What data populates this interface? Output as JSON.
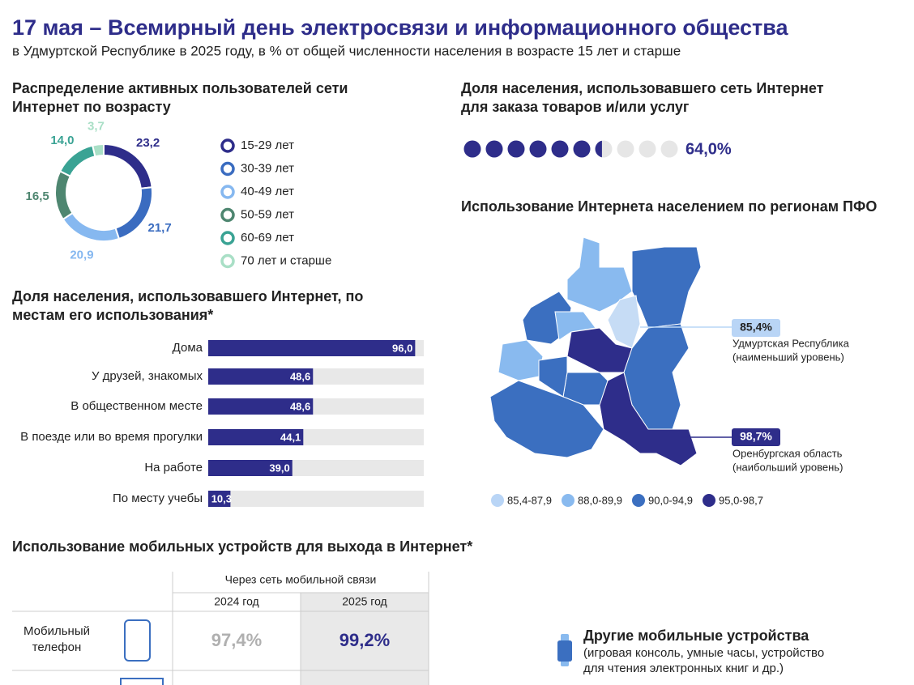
{
  "header": {
    "title": "17 мая – Всемирный день электросвязи и информационного общества",
    "subtitle": "в Удмуртской Республике в 2025 году, в % от общей численности населения в возрасте 15 лет и старше"
  },
  "chart_data": [
    {
      "type": "donut",
      "title": "Распределение активных пользователей сети Интернет по возрасту",
      "categories": [
        "15-29 лет",
        "30-39 лет",
        "40-49 лет",
        "50-59 лет",
        "60-69 лет",
        "70 лет и старше"
      ],
      "values": [
        23.2,
        21.7,
        20.9,
        16.5,
        14.0,
        3.7
      ],
      "value_labels": [
        "23,2",
        "21,7",
        "20,9",
        "16,5",
        "14,0",
        "3,7"
      ],
      "colors": [
        "#2e2d8a",
        "#3a6cc0",
        "#86b8f0",
        "#4e8670",
        "#3aa394",
        "#a9dfc6"
      ]
    },
    {
      "type": "dots",
      "title": "Доля населения, использовавшего сеть Интернет для заказа товаров и/или услуг",
      "values": [
        64.0
      ],
      "value_labels": [
        "64,0%"
      ],
      "xlim": [
        0,
        100
      ],
      "color": "#2e2d8a"
    },
    {
      "type": "hbar",
      "title": "Доля населения, использовавшего Интернет, по местам его использования*",
      "categories": [
        "Дома",
        "У друзей, знакомых",
        "В общественном месте",
        "В поезде или во время прогулки",
        "На работе",
        "По месту учебы"
      ],
      "values": [
        96.0,
        48.6,
        48.6,
        44.1,
        39.0,
        10.3
      ],
      "value_labels": [
        "96,0",
        "48,6",
        "48,6",
        "44,1",
        "39,0",
        "10,3"
      ],
      "xlim": [
        0,
        100
      ],
      "color": "#2e2d8a"
    }
  ],
  "map": {
    "title": "Использование Интернета населением по регионам ПФО",
    "legend": [
      {
        "label": "85,4-87,9",
        "color": "#b9d5f6"
      },
      {
        "label": "88,0-89,9",
        "color": "#89baef"
      },
      {
        "label": "90,0-94,9",
        "color": "#3b6fc0"
      },
      {
        "label": "95,0-98,7",
        "color": "#2e2d8a"
      }
    ],
    "callouts": [
      {
        "value": "85,4%",
        "name": "Удмуртская Республика",
        "note": "(наименьший уровень)"
      },
      {
        "value": "98,7%",
        "name": "Оренбургская область",
        "note": "(наибольший уровень)"
      }
    ]
  },
  "mobile": {
    "title": "Использование мобильных устройств для выхода в Интернет*",
    "group": "Через сеть мобильной связи",
    "years": [
      "2024 год",
      "2025 год"
    ],
    "rows": [
      {
        "label": "Мобильный телефон",
        "values": [
          "97,4%",
          "99,2%"
        ]
      }
    ]
  },
  "other": {
    "title": "Другие мобильные устройства",
    "desc": [
      "(игровая консоль, умные часы, устройство",
      "для чтения электронных книг и др.)"
    ]
  }
}
